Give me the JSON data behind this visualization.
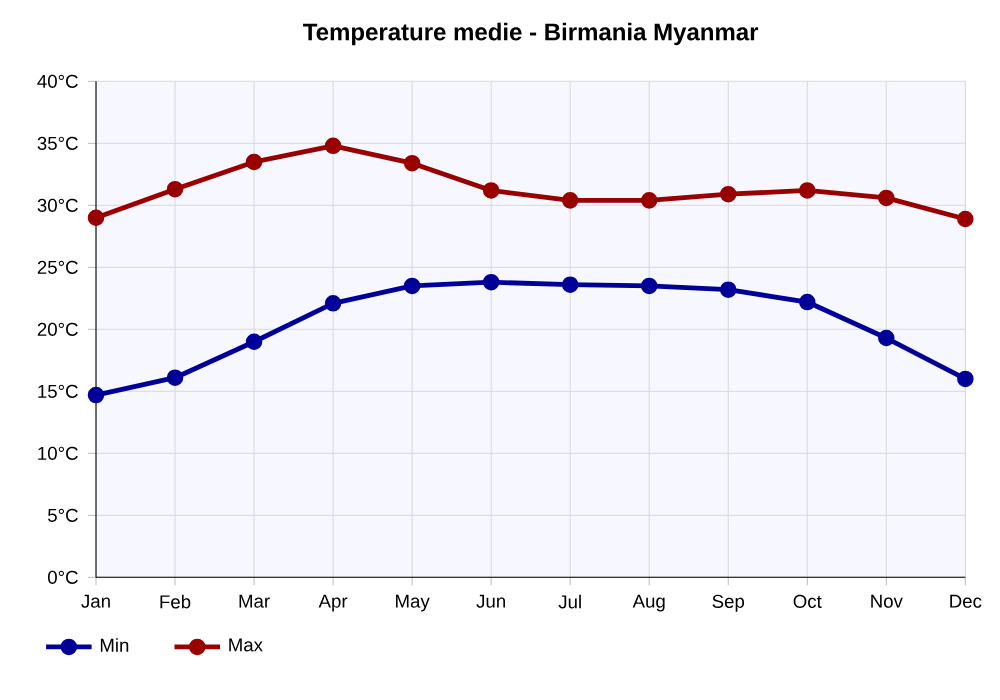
{
  "chart_data": {
    "type": "line",
    "title": "Temperature medie - Birmania Myanmar",
    "categories": [
      "Jan",
      "Feb",
      "Mar",
      "Apr",
      "May",
      "Jun",
      "Jul",
      "Aug",
      "Sep",
      "Oct",
      "Nov",
      "Dec"
    ],
    "series": [
      {
        "name": "Min",
        "color": "#000099",
        "values": [
          14.7,
          16.1,
          19.0,
          22.1,
          23.5,
          23.8,
          23.6,
          23.5,
          23.2,
          22.2,
          19.3,
          16.0
        ]
      },
      {
        "name": "Max",
        "color": "#990000",
        "values": [
          29.0,
          31.3,
          33.5,
          34.8,
          33.4,
          31.2,
          30.4,
          30.4,
          30.9,
          31.2,
          30.6,
          28.9
        ]
      }
    ],
    "ylim": [
      0,
      40
    ],
    "yticks": [
      {
        "value": 0,
        "label": "0°C"
      },
      {
        "value": 5,
        "label": "5°C"
      },
      {
        "value": 10,
        "label": "10°C"
      },
      {
        "value": 15,
        "label": "15°C"
      },
      {
        "value": 20,
        "label": "20°C"
      },
      {
        "value": 25,
        "label": "25°C"
      },
      {
        "value": 30,
        "label": "30°C"
      },
      {
        "value": 35,
        "label": "35°C"
      },
      {
        "value": 40,
        "label": "40°C"
      }
    ],
    "grid": true,
    "legend": "bottom left",
    "marker": "circle",
    "line_style": "solid"
  }
}
